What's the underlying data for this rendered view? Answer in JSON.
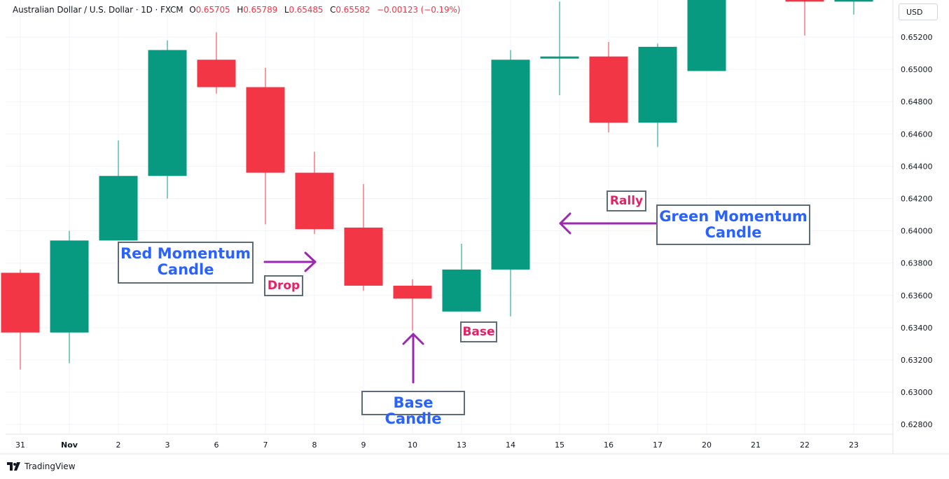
{
  "header": {
    "symbol": "Australian Dollar / U.S. Dollar · 1D · FXCM",
    "o_label": "O",
    "o_value": "0.65705",
    "h_label": "H",
    "h_value": "0.65789",
    "l_label": "L",
    "l_value": "0.65485",
    "c_label": "C",
    "c_value": "0.65582",
    "change": "−0.00123 (−0.19%)"
  },
  "currency": "USD",
  "brand": "TradingView",
  "annotations": {
    "red_momentum": "Red Momentum Candle",
    "drop": "Drop",
    "base_candle": "Base Candle",
    "base": "Base",
    "rally": "Rally",
    "green_momentum": "Green Momentum Candle"
  },
  "colors": {
    "up": "#089981",
    "down": "#f23645",
    "arrow": "#9c27b0",
    "label_blue": "#2962ff",
    "label_red": "#e91e63",
    "grid": "#f0f3fa"
  },
  "chart_data": {
    "type": "candlestick",
    "title": "Australian Dollar / U.S. Dollar · 1D · FXCM",
    "x_tick_labels": [
      "31",
      "Nov",
      "2",
      "3",
      "6",
      "7",
      "8",
      "9",
      "10",
      "13",
      "14",
      "15",
      "16",
      "17",
      "20",
      "21",
      "22",
      "23"
    ],
    "y_tick_labels": [
      "0.62800",
      "0.63000",
      "0.63200",
      "0.63400",
      "0.63600",
      "0.63800",
      "0.64000",
      "0.64200",
      "0.64400",
      "0.64600",
      "0.64800",
      "0.65000",
      "0.65200"
    ],
    "ylim": [
      0.6274,
      0.6543
    ],
    "candles": [
      {
        "date": "31",
        "open": 0.6374,
        "high": 0.6376,
        "low": 0.6314,
        "close": 0.6337
      },
      {
        "date": "Nov",
        "open": 0.6337,
        "high": 0.64,
        "low": 0.6318,
        "close": 0.6394
      },
      {
        "date": "2",
        "open": 0.6394,
        "high": 0.6456,
        "low": 0.6394,
        "close": 0.6434
      },
      {
        "date": "3",
        "open": 0.6434,
        "high": 0.6518,
        "low": 0.642,
        "close": 0.6512
      },
      {
        "date": "6",
        "open": 0.6506,
        "high": 0.6523,
        "low": 0.6485,
        "close": 0.6489
      },
      {
        "date": "7",
        "open": 0.6489,
        "high": 0.6501,
        "low": 0.6404,
        "close": 0.6436
      },
      {
        "date": "8",
        "open": 0.6436,
        "high": 0.6449,
        "low": 0.6398,
        "close": 0.6401
      },
      {
        "date": "9",
        "open": 0.6402,
        "high": 0.6429,
        "low": 0.6363,
        "close": 0.6366
      },
      {
        "date": "10",
        "open": 0.6366,
        "high": 0.637,
        "low": 0.6338,
        "close": 0.6358
      },
      {
        "date": "13",
        "open": 0.635,
        "high": 0.6392,
        "low": 0.635,
        "close": 0.6376
      },
      {
        "date": "14",
        "open": 0.6376,
        "high": 0.6512,
        "low": 0.6347,
        "close": 0.6506
      },
      {
        "date": "15",
        "open": 0.6507,
        "high": 0.6542,
        "low": 0.6484,
        "close": 0.6508
      },
      {
        "date": "16",
        "open": 0.6508,
        "high": 0.6517,
        "low": 0.6461,
        "close": 0.6467
      },
      {
        "date": "17",
        "open": 0.6467,
        "high": 0.6516,
        "low": 0.6452,
        "close": 0.6514
      },
      {
        "date": "20",
        "open": 0.6499,
        "high": 0.655,
        "low": 0.6499,
        "close": 0.655
      },
      {
        "date": "21",
        "open": null,
        "high": null,
        "low": null,
        "close": null
      },
      {
        "date": "22",
        "open": 0.655,
        "high": 0.655,
        "low": 0.6521,
        "close": 0.6542
      },
      {
        "date": "23",
        "open": 0.6542,
        "high": 0.655,
        "low": 0.6534,
        "close": 0.655
      }
    ],
    "grid": true
  }
}
